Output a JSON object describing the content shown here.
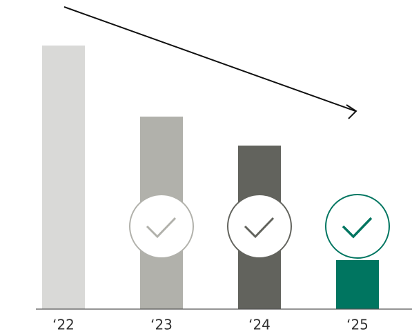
{
  "chart_data": {
    "type": "bar",
    "categories": [
      "‘22",
      "‘23",
      "‘24",
      "‘25"
    ],
    "values": [
      382,
      279,
      237,
      71
    ],
    "colors": [
      "#d9d9d7",
      "#b1b1ab",
      "#62635d",
      "#007560"
    ],
    "ylim": [
      0,
      400
    ]
  }
}
